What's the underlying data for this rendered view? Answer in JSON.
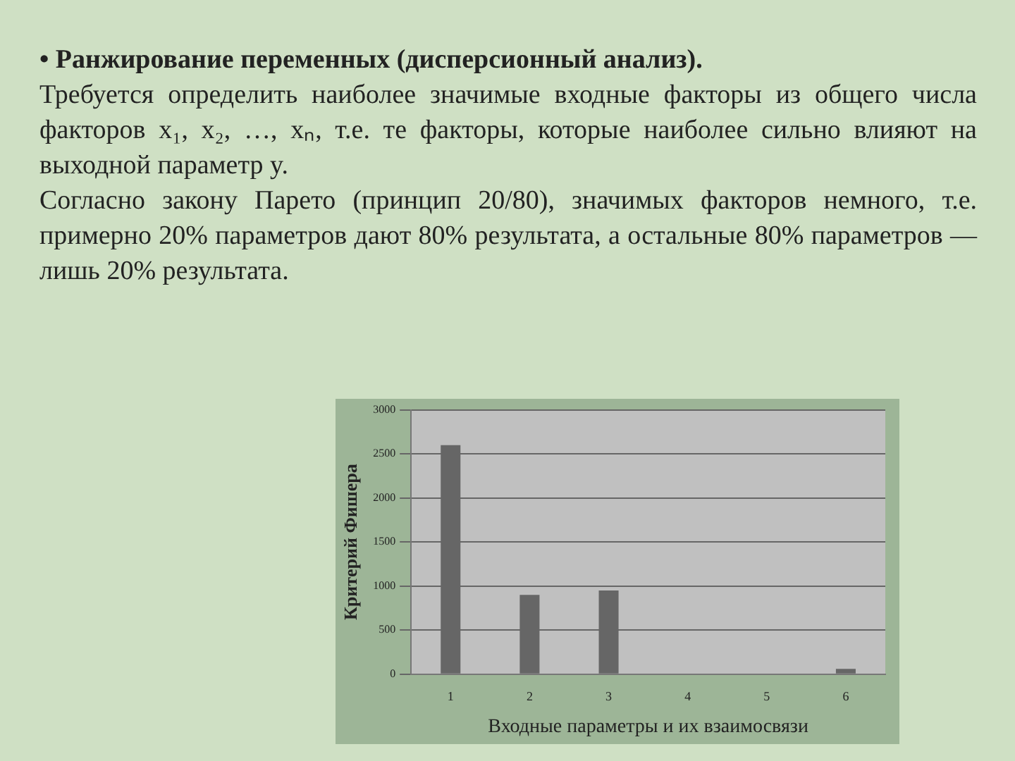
{
  "chart_data": {
    "type": "bar",
    "title": "• Ранжирование переменных (дисперсионный анализ).",
    "annotations": [
      "Требуется определить наиболее значимые входные факторы из общего числа факторов x₁, x₂, …, xₙ, т.е. те факторы, которые наиболее сильно влияют на выходной параметр y.",
      "Согласно закону Парето (принцип 20/80), значимых факторов немного, т.е. примерно 20% параметров дают 80% результата, а остальные 80% параметров — лишь 20% результата."
    ],
    "xlabel": "Входные параметры и их взаимосвязи",
    "ylabel": "Критерий Фишера",
    "categories": [
      "1",
      "2",
      "3",
      "4",
      "5",
      "6"
    ],
    "values": [
      2600,
      900,
      950,
      0,
      0,
      60
    ],
    "color": "#666666",
    "ylim": [
      0,
      3000
    ],
    "yticks": [
      0,
      500,
      1000,
      1500,
      2000,
      2500,
      3000
    ],
    "grid": "y",
    "legend": false
  }
}
